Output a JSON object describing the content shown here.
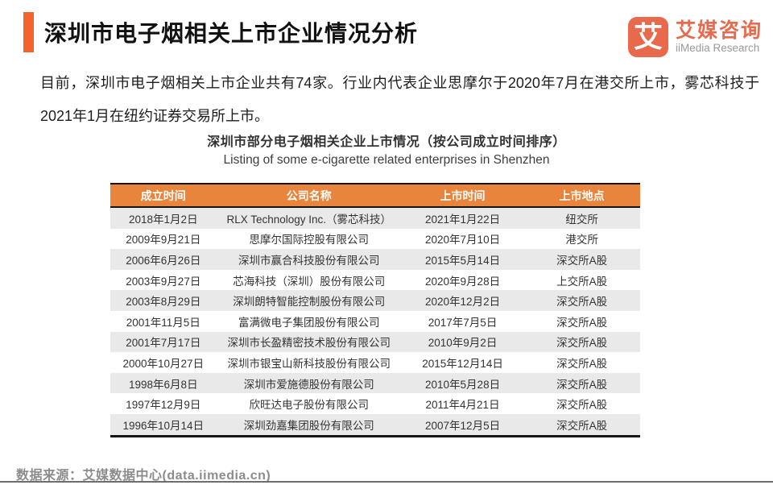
{
  "header": {
    "title": "深圳市电子烟相关上市企业情况分析",
    "logo": {
      "mark": "艾",
      "brand_cn": "艾媒咨询",
      "brand_en": "iiMedia Research"
    }
  },
  "intro": "目前，深圳市电子烟相关上市企业共有74家。行业内代表企业思摩尔于2020年7月在港交所上市，雾芯科技于2021年1月在纽约证券交易所上市。",
  "table": {
    "title_cn": "深圳市部分电子烟相关企业上市情况（按公司成立时间排序）",
    "title_en": "Listing of some e-cigarette related enterprises in Shenzhen",
    "columns": [
      "成立时间",
      "公司名称",
      "上市时间",
      "上市地点"
    ],
    "rows": [
      [
        "2018年1月2日",
        "RLX Technology Inc.（雾芯科技）",
        "2021年1月22日",
        "纽交所"
      ],
      [
        "2009年9月21日",
        "思摩尔国际控股有限公司",
        "2020年7月10日",
        "港交所"
      ],
      [
        "2006年6月26日",
        "深圳市赢合科技股份有限公司",
        "2015年5月14日",
        "深交所A股"
      ],
      [
        "2003年9月27日",
        "芯海科技（深圳）股份有限公司",
        "2020年9月28日",
        "上交所A股"
      ],
      [
        "2003年8月29日",
        "深圳朗特智能控制股份有限公司",
        "2020年12月2日",
        "深交所A股"
      ],
      [
        "2001年11月5日",
        "富满微电子集团股份有限公司",
        "2017年7月5日",
        "深交所A股"
      ],
      [
        "2001年7月17日",
        "深圳市长盈精密技术股份有限公司",
        "2010年9月2日",
        "深交所A股"
      ],
      [
        "2000年10月27日",
        "深圳市银宝山新科技股份有限公司",
        "2015年12月14日",
        "深交所A股"
      ],
      [
        "1998年6月8日",
        "深圳市爱施德股份有限公司",
        "2010年5月28日",
        "深交所A股"
      ],
      [
        "1997年12月9日",
        "欣旺达电子股份有限公司",
        "2011年4月21日",
        "深交所A股"
      ],
      [
        "1996年10月14日",
        "深圳劲嘉集团股份有限公司",
        "2007年12月5日",
        "深交所A股"
      ]
    ]
  },
  "footer": {
    "source": "数据来源：艾媒数据中心(data.iimedia.cn)"
  },
  "colors": {
    "accent_orange": "#F4622D",
    "table_header_orange": "#E8843B",
    "logo_orange": "#E8694B",
    "row_stripe_gray": "#E9E9E9",
    "border_black": "#141414",
    "footer_gray": "#8C8C8C"
  }
}
